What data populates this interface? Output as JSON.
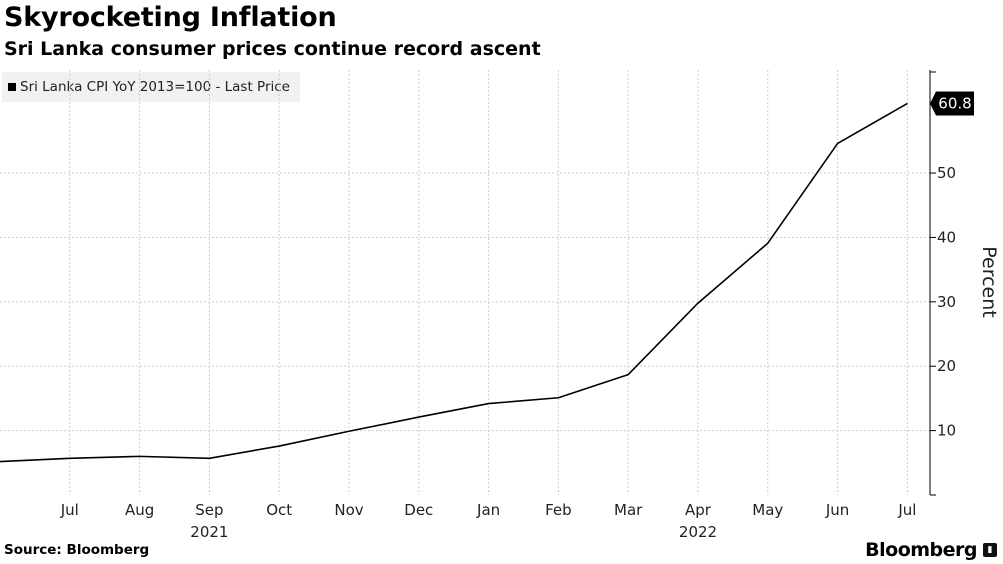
{
  "header": {
    "title": "Skyrocketing Inflation",
    "subtitle": "Sri Lanka consumer prices continue record ascent"
  },
  "footer": {
    "source": "Source: Bloomberg",
    "brand": "Bloomberg"
  },
  "chart_data": {
    "type": "line",
    "title": "Skyrocketing Inflation",
    "subtitle": "Sri Lanka consumer prices continue record ascent",
    "ylabel": "Percent",
    "xlabel": "",
    "categories": [
      "Jun 2021",
      "Jul 2021",
      "Aug 2021",
      "Sep 2021",
      "Oct 2021",
      "Nov 2021",
      "Dec 2021",
      "Jan 2022",
      "Feb 2022",
      "Mar 2022",
      "Apr 2022",
      "May 2022",
      "Jun 2022",
      "Jul 2022"
    ],
    "x_tick_labels": [
      "Jul",
      "Aug",
      "Sep",
      "Oct",
      "Nov",
      "Dec",
      "Jan",
      "Feb",
      "Mar",
      "Apr",
      "May",
      "Jun",
      "Jul"
    ],
    "year_labels": [
      {
        "label": "2021",
        "category": "Sep 2021"
      },
      {
        "label": "2022",
        "category": "Apr 2022"
      }
    ],
    "series": [
      {
        "name": "Sri Lanka CPI YoY 2013=100 - Last Price",
        "values": [
          5.2,
          5.7,
          6.0,
          5.7,
          7.6,
          9.9,
          12.1,
          14.2,
          15.1,
          18.7,
          29.8,
          39.1,
          54.6,
          60.8
        ]
      }
    ],
    "last_value_label": "60.8",
    "y_ticks": [
      10,
      20,
      30,
      40,
      50
    ],
    "ylim": [
      0,
      66
    ],
    "grid": true,
    "legend_position": "top-left",
    "colors": {
      "line": "#000000",
      "grid": "#cccccc",
      "last_value_box": "#000000"
    }
  }
}
